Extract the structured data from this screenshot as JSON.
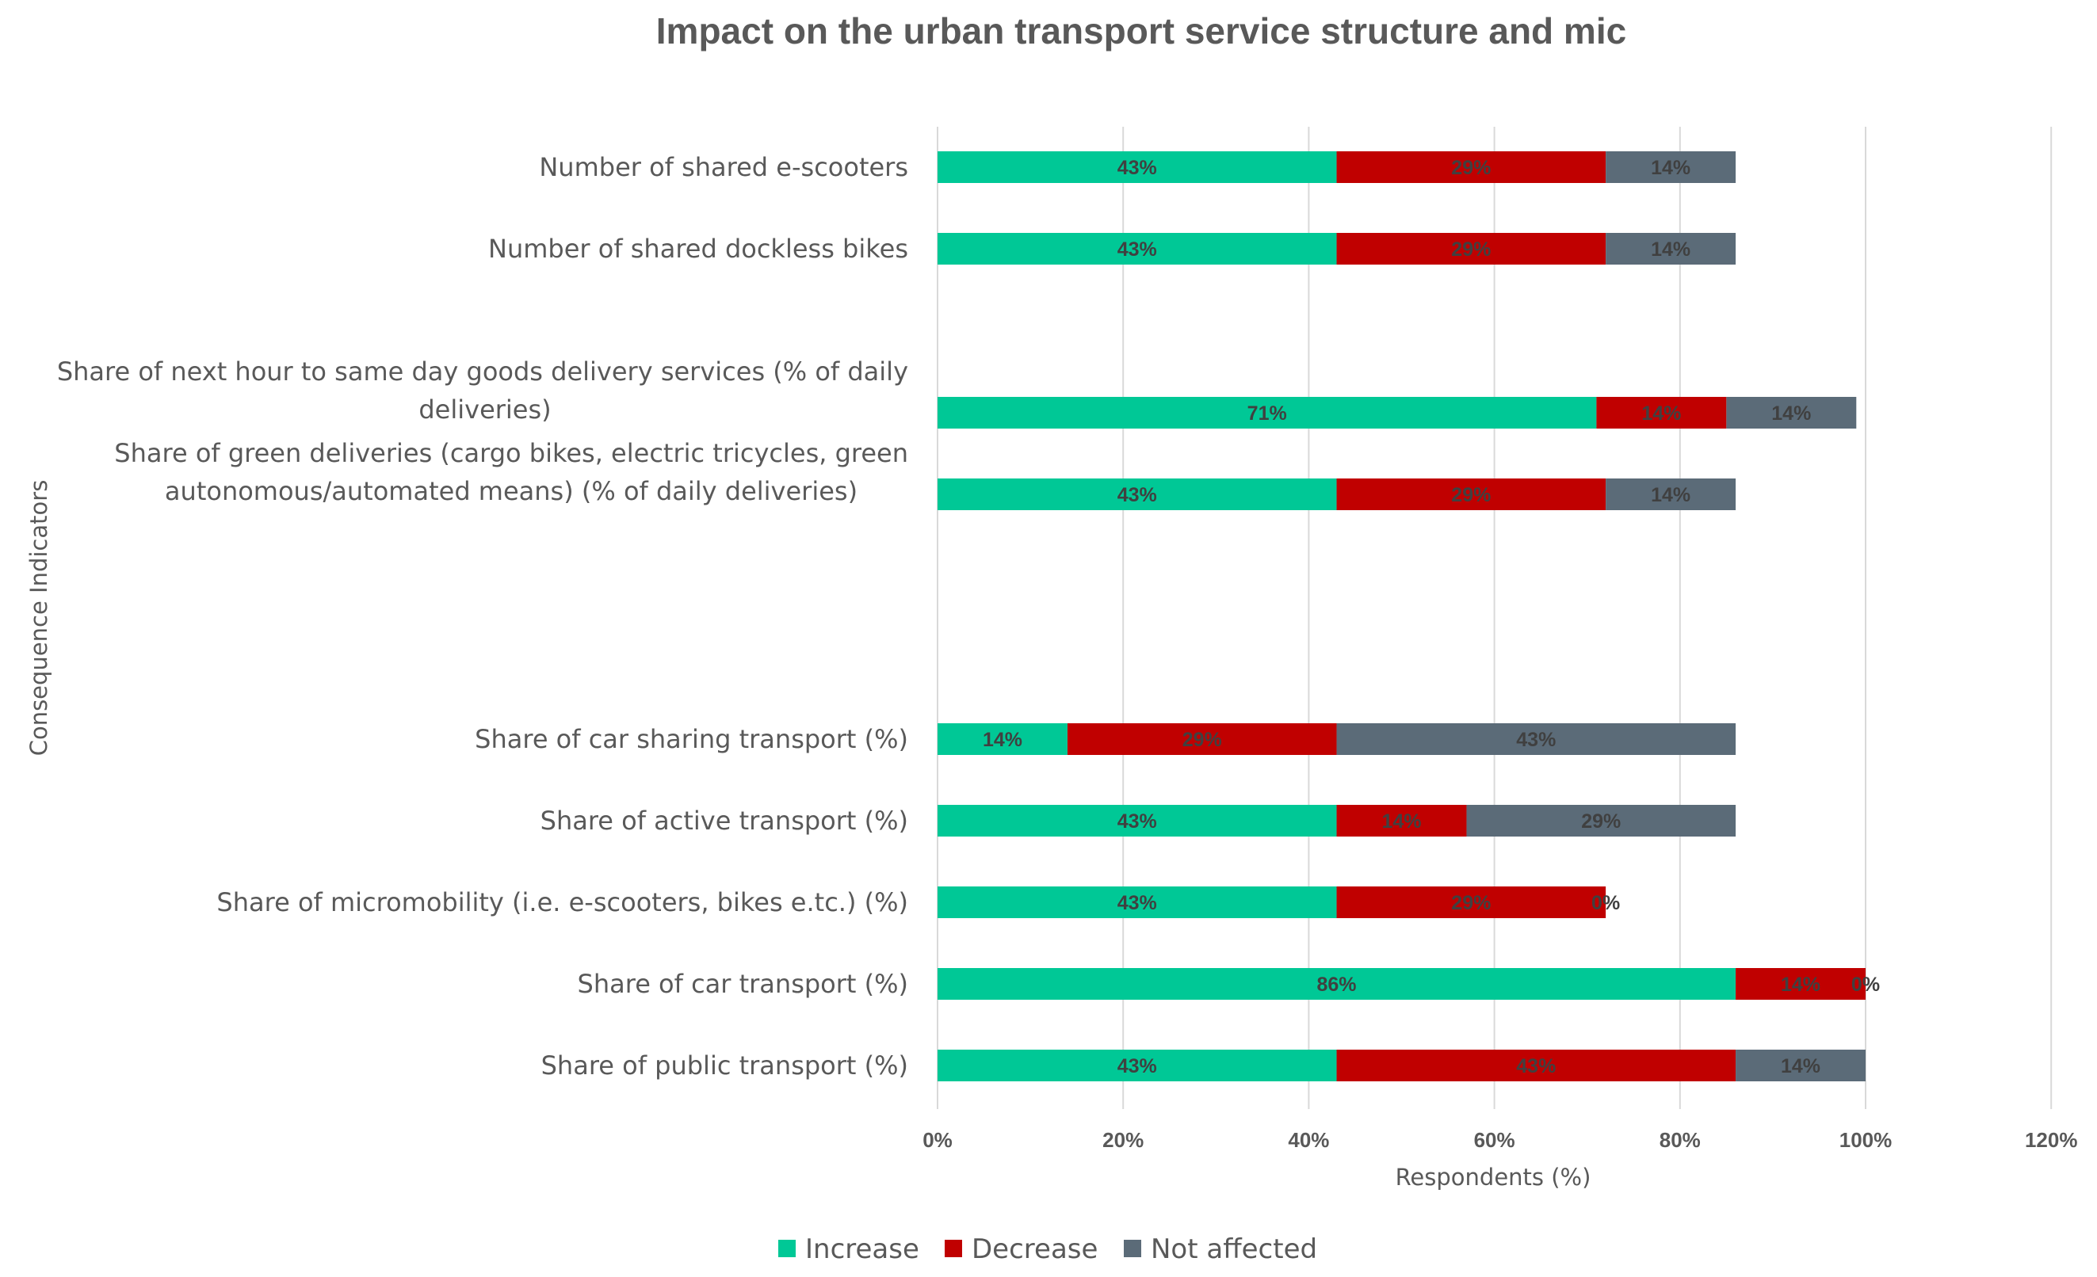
{
  "chart_data": {
    "type": "bar",
    "orientation": "horizontal",
    "stacked": true,
    "title": "Impact on the urban transport service structure and mic",
    "xlabel": "Respondents (%)",
    "ylabel": "Consequence Indicators",
    "xlim": [
      0,
      120
    ],
    "xticks": [
      "0%",
      "20%",
      "40%",
      "60%",
      "80%",
      "100%",
      "120%"
    ],
    "grid": true,
    "legend_position": "bottom",
    "colors": {
      "Increase": "#00c896",
      "Decrease": "#c00000",
      "Not affected": "#5b6b78"
    },
    "categories": [
      [
        "Number of shared e-scooters"
      ],
      [
        "Number of shared dockless bikes"
      ],
      [
        "Share of next hour to same day goods delivery services (% of daily",
        "deliveries)"
      ],
      [
        "Share of green deliveries (cargo bikes, electric tricycles, green",
        "autonomous/automated means) (% of daily deliveries)"
      ],
      [
        "Share of car sharing transport (%)"
      ],
      [
        "Share of active transport (%)"
      ],
      [
        "Share of micromobility (i.e. e-scooters, bikes e.tc.) (%)"
      ],
      [
        "Share of car transport (%)"
      ],
      [
        "Share of public transport (%)"
      ]
    ],
    "series": [
      {
        "name": "Increase",
        "values": [
          43,
          43,
          71,
          43,
          14,
          43,
          43,
          86,
          43
        ],
        "labels": [
          "43%",
          "43%",
          "71%",
          "43%",
          "14%",
          "43%",
          "43%",
          "86%",
          "43%"
        ]
      },
      {
        "name": "Decrease",
        "values": [
          29,
          29,
          14,
          29,
          29,
          14,
          29,
          14,
          43
        ],
        "labels": [
          "29%",
          "29%",
          "14%",
          "29%",
          "29%",
          "14%",
          "29%",
          "14%",
          "43%"
        ]
      },
      {
        "name": "Not affected",
        "values": [
          14,
          14,
          14,
          14,
          43,
          29,
          0,
          0,
          14
        ],
        "labels": [
          "14%",
          "14%",
          "14%",
          "14%",
          "43%",
          "29%",
          "0%",
          "0%",
          "14%"
        ]
      }
    ]
  }
}
